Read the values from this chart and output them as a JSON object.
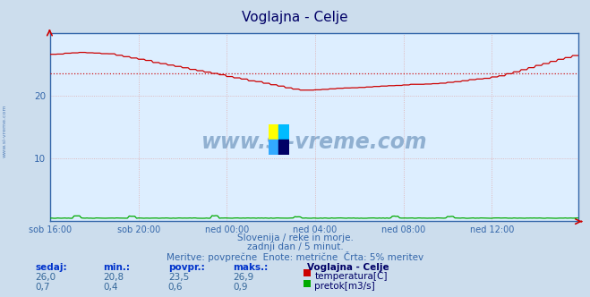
{
  "title": "Voglajna - Celje",
  "bg_color": "#ccdded",
  "plot_bg_color": "#ddeeff",
  "x_labels": [
    "sob 16:00",
    "sob 20:00",
    "ned 00:00",
    "ned 04:00",
    "ned 08:00",
    "ned 12:00"
  ],
  "x_ticks_pos": [
    0,
    48,
    96,
    144,
    192,
    240
  ],
  "total_points": 288,
  "ylim": [
    0,
    30
  ],
  "yticks": [
    10,
    20
  ],
  "temp_avg": 23.5,
  "temp_min": 20.8,
  "temp_max": 26.9,
  "temp_current": 26.0,
  "flow_avg": 0.6,
  "flow_min": 0.4,
  "flow_max": 0.9,
  "flow_current": 0.7,
  "temp_color": "#cc0000",
  "flow_color": "#00aa00",
  "avg_line_color": "#cc0000",
  "footer_line1": "Slovenija / reke in morje.",
  "footer_line2": "zadnji dan / 5 minut.",
  "footer_line3": "Meritve: povprečne  Enote: metrične  Črta: 5% meritev",
  "legend_title": "Voglajna - Celje",
  "label_color": "#3366aa",
  "watermark": "www.si-vreme.com",
  "sidebar_text": "www.si-vreme.com",
  "spine_color": "#3366aa",
  "arrow_color": "#cc0000",
  "header_color": "#0033cc",
  "value_color": "#336699",
  "legend_label_color": "#000066"
}
